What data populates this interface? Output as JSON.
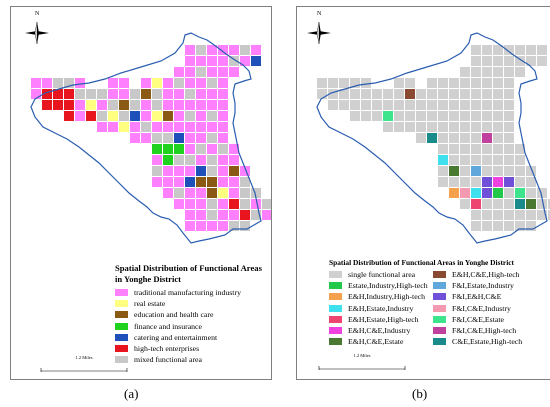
{
  "panel_a": {
    "compass_label": "N",
    "title": "Spatial Distribution of Functional Areas in Yonghe District",
    "legend": [
      {
        "label": "traditional manufacturing industry",
        "color": "#ff80ff"
      },
      {
        "label": "real estate",
        "color": "#ffff80"
      },
      {
        "label": "education and health care",
        "color": "#8a5a14"
      },
      {
        "label": "finance and insurance",
        "color": "#1ed21e"
      },
      {
        "label": "catering and entertainment",
        "color": "#1f4fb8"
      },
      {
        "label": "high-tech enterprises",
        "color": "#e8141e"
      },
      {
        "label": "mixed functional area",
        "color": "#c8c8c8"
      }
    ],
    "scale_label": "1.2 Miles",
    "caption": "(a)"
  },
  "panel_b": {
    "compass_label": "N",
    "title": "Spatial Distribution of Functional Areas in Yonghe District",
    "legend_col1": [
      {
        "label": "single functional area",
        "color": "#d0d0d0"
      },
      {
        "label": "Estate,Industry,High-tech",
        "color": "#22c84a"
      },
      {
        "label": "E&H,Industry,High-tech",
        "color": "#f4a04c"
      },
      {
        "label": "E&H,Estate,Industry",
        "color": "#3ee0ee"
      },
      {
        "label": "E&H,Estate,High-tech",
        "color": "#ee4470"
      },
      {
        "label": "E&H,C&E,Industry",
        "color": "#f040e0"
      },
      {
        "label": "E&H,C&E,Estate",
        "color": "#4a7a32"
      }
    ],
    "legend_col2": [
      {
        "label": "E&H,C&E,High-tech",
        "color": "#8a4a32"
      },
      {
        "label": "F&I,Estate,Industry",
        "color": "#60a8dc"
      },
      {
        "label": "F&I,E&H,C&E",
        "color": "#7050d8"
      },
      {
        "label": "F&I,C&E,Industry",
        "color": "#f49ab0"
      },
      {
        "label": "F&I,C&E,Estate",
        "color": "#3ee48c"
      },
      {
        "label": "F&I,C&E,High-tech",
        "color": "#c040a0"
      },
      {
        "label": "C&E,Estate,High-tech",
        "color": "#1a8a8a"
      }
    ],
    "scale_label": "1.2 Miles",
    "caption": "(b)"
  }
}
